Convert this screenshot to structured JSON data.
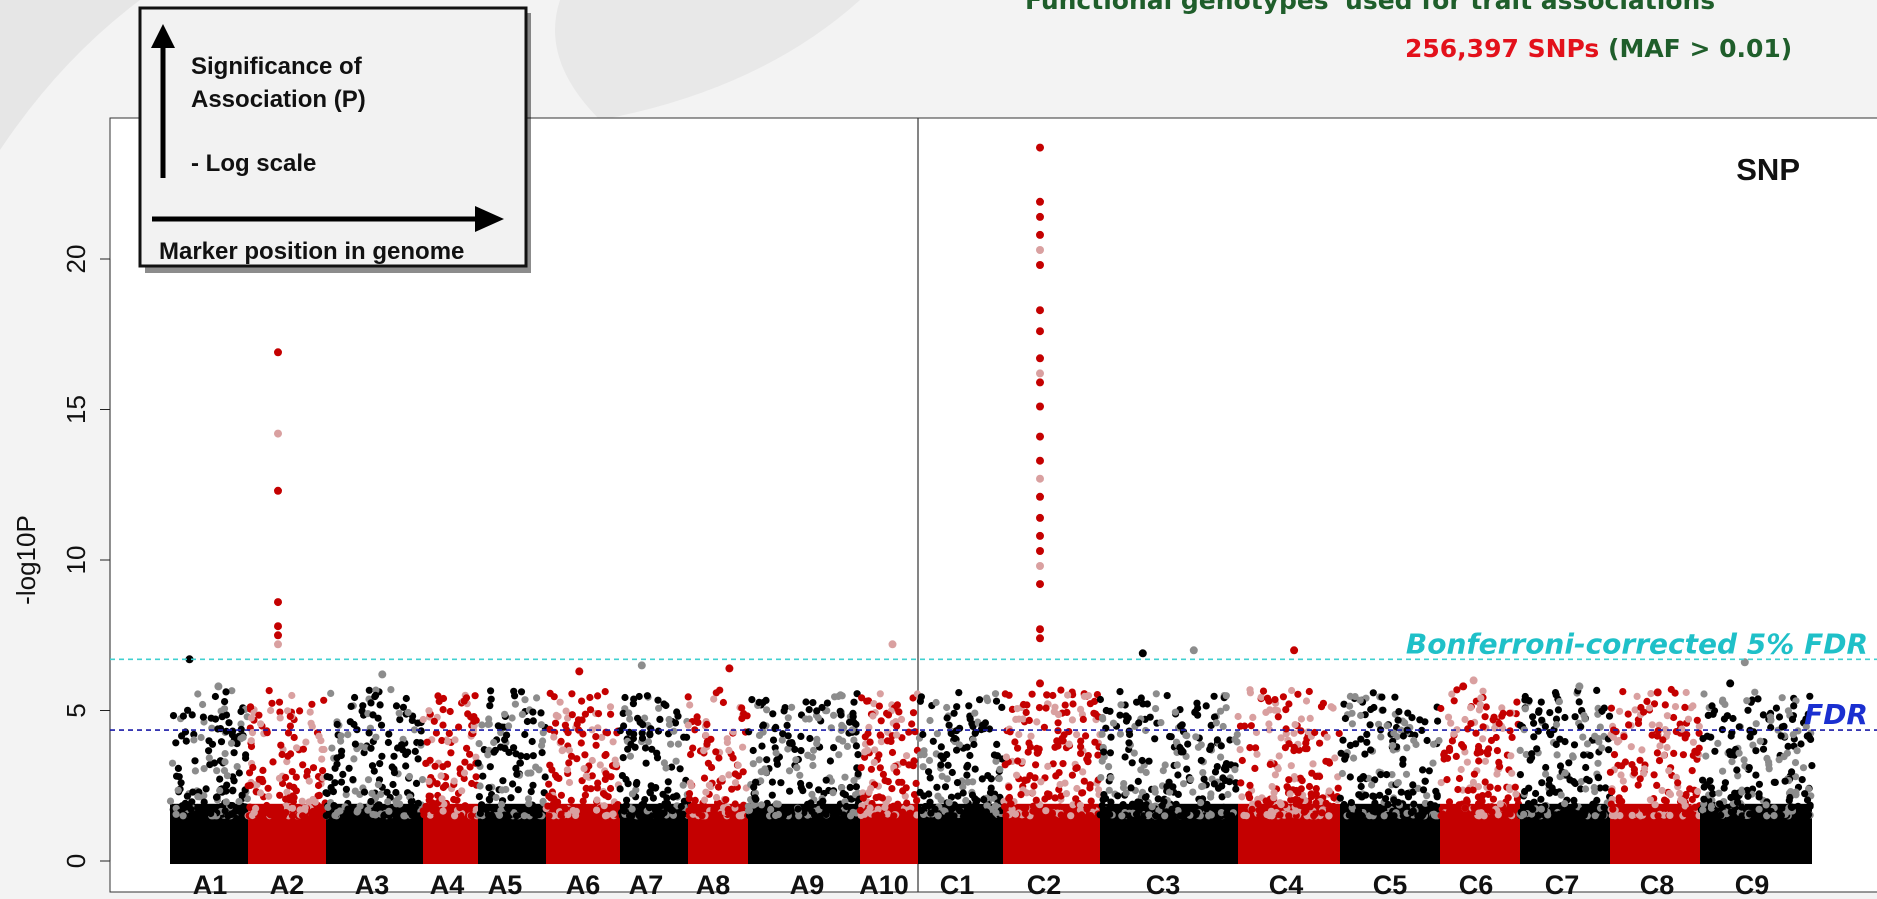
{
  "header": {
    "line1": "Functional genotypes' used for trait associations",
    "snp_count": "256,397",
    "snp_word": "SNPs",
    "maf": "(MAF > 0.01)"
  },
  "legend_box": {
    "y_label": "Significance of Association (P)",
    "log_scale": "- Log scale",
    "x_label": "Marker position in genome"
  },
  "chart_data": {
    "type": "scatter",
    "title": "SNP",
    "ylabel": "-log10P",
    "xlabel": "",
    "ylim": [
      -0.5,
      24
    ],
    "yticks": [
      0,
      5,
      10,
      15,
      20
    ],
    "chromosomes": [
      "A1",
      "A2",
      "A3",
      "A4",
      "A5",
      "A6",
      "A7",
      "A8",
      "A9",
      "A10",
      "C1",
      "C2",
      "C3",
      "C4",
      "C5",
      "C6",
      "C7",
      "C8",
      "C9"
    ],
    "lines": [
      {
        "name": "Bonferroni-corrected 5% FDR",
        "y": 6.7,
        "color": "#40d0d0"
      },
      {
        "name": "FDR",
        "y": 4.35,
        "color": "#1a1aa8"
      }
    ],
    "point_colors": {
      "black": "#000000",
      "grey": "#8c8c8c",
      "red": "#c40000",
      "pink": "#d9a0a0"
    },
    "notable_points": [
      {
        "chr": "A1",
        "y": 6.7
      },
      {
        "chr": "A1",
        "y": 5.8
      },
      {
        "chr": "A2",
        "y": 16.9
      },
      {
        "chr": "A2",
        "y": 14.2
      },
      {
        "chr": "A2",
        "y": 12.3
      },
      {
        "chr": "A2",
        "y": 8.6
      },
      {
        "chr": "A2",
        "y": 7.8
      },
      {
        "chr": "A2",
        "y": 7.5
      },
      {
        "chr": "A2",
        "y": 7.2
      },
      {
        "chr": "A3",
        "y": 6.2
      },
      {
        "chr": "A6",
        "y": 6.3
      },
      {
        "chr": "A7",
        "y": 6.5
      },
      {
        "chr": "A8",
        "y": 6.4
      },
      {
        "chr": "A10",
        "y": 7.2
      },
      {
        "chr": "C2",
        "y": 23.7
      },
      {
        "chr": "C2",
        "y": 21.9
      },
      {
        "chr": "C2",
        "y": 21.4
      },
      {
        "chr": "C2",
        "y": 20.8
      },
      {
        "chr": "C2",
        "y": 20.3
      },
      {
        "chr": "C2",
        "y": 19.8
      },
      {
        "chr": "C2",
        "y": 18.3
      },
      {
        "chr": "C2",
        "y": 17.6
      },
      {
        "chr": "C2",
        "y": 16.7
      },
      {
        "chr": "C2",
        "y": 16.2
      },
      {
        "chr": "C2",
        "y": 15.9
      },
      {
        "chr": "C2",
        "y": 15.1
      },
      {
        "chr": "C2",
        "y": 14.1
      },
      {
        "chr": "C2",
        "y": 13.3
      },
      {
        "chr": "C2",
        "y": 12.7
      },
      {
        "chr": "C2",
        "y": 12.1
      },
      {
        "chr": "C2",
        "y": 11.4
      },
      {
        "chr": "C2",
        "y": 10.8
      },
      {
        "chr": "C2",
        "y": 10.3
      },
      {
        "chr": "C2",
        "y": 9.8
      },
      {
        "chr": "C2",
        "y": 9.2
      },
      {
        "chr": "C2",
        "y": 7.7
      },
      {
        "chr": "C2",
        "y": 7.4
      },
      {
        "chr": "C2",
        "y": 5.9
      },
      {
        "chr": "C3",
        "y": 6.9
      },
      {
        "chr": "C3",
        "y": 7.0
      },
      {
        "chr": "C4",
        "y": 7.0
      },
      {
        "chr": "C6",
        "y": 6.0
      },
      {
        "chr": "C6",
        "y": 5.8
      },
      {
        "chr": "C7",
        "y": 5.8
      },
      {
        "chr": "C8",
        "y": 5.6
      },
      {
        "chr": "C9",
        "y": 6.6
      },
      {
        "chr": "C9",
        "y": 5.9
      }
    ]
  }
}
